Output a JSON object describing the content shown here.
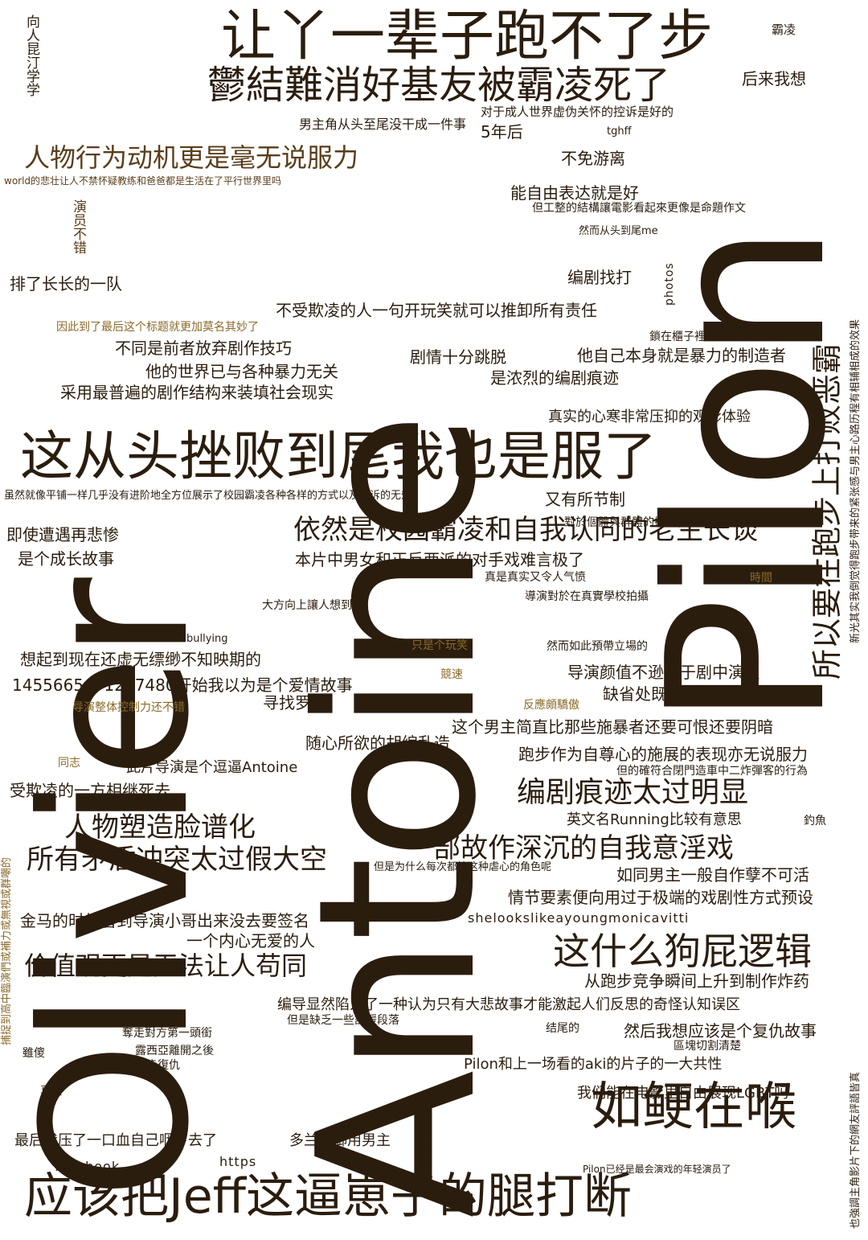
{
  "big": {
    "olivier": "Olivier",
    "antoine": "Antoine",
    "pilon": "Pilon"
  },
  "words": {
    "w01": "让丫一辈子跑不了步",
    "w02": "鬱結難消好基友被霸凌死了",
    "w03": "霸凌",
    "w04": "后来我想",
    "w05": "对于成人世界虚伪关怀的控诉是好的",
    "w06": "男主角从头至尾没干成一件事",
    "w07": "5年后",
    "w08": "tghff",
    "w09": "人物行为动机更是毫无说服力",
    "w10": "world的悲壮让人不禁怀疑教练和爸爸都是生活在了平行世界里吗",
    "w11": "不免游离",
    "w12": "能自由表达就是好",
    "w13": "但工整的結構讓電影看起來更像是命題作文",
    "w14": "然而从头到尾me",
    "w15": "排了长长的一队",
    "w16": "编剧找打",
    "w17": "不受欺凌的人一句开玩笑就可以推卸所有责任",
    "w18": "因此到了最后这个标题就更加莫名其妙了",
    "w19": "鎖在櫃子裡的意象不時出現",
    "w20": "不同是前者放弃剧作技巧",
    "w21": "剧情十分跳脱",
    "w22": "他自己本身就是暴力的制造者",
    "w23": "他的世界已与各种暴力无关",
    "w24": "是浓烈的编剧痕迹",
    "w25": "采用最普遍的剧作结构来装填社会现实",
    "w26": "真实的心寒非常压抑的观影体验",
    "w27": "这从头挫败到尾我也是服了",
    "w28": "虽然就像平铺一样几乎没有进阶地全方位展示了校园霸凌各种各样的方式以及控诉的无效",
    "w29": "又有所节制",
    "w30": "對於個體與群體的探討有些微失焦",
    "w31": "即使遭遇再悲惨",
    "w32": "依然是校园霸凌和自我认同的老生长谈",
    "w33": "是个成长故事",
    "w34": "本片中男女和正反两派的对手戏难言极了",
    "w35": "時間",
    "w36": "真是真实又令人气愤",
    "w37": "大方向上讓人想到",
    "w38": "導演對於在真實學校拍攝",
    "w39": "bullying",
    "w40": "只是个玩笑",
    "w41": "然而如此預帶立場的",
    "w42": "想起到现在还虚无缥缈不知映期的",
    "w43": "导演颜值不逊色于剧中演员",
    "w44": "競速",
    "w45": "1455665471217480开始我以为是个爱情故事",
    "w46": "缺省处既改编着人物的命运",
    "w47": "寻找罗麦",
    "w48": "导演整体控制力还不错",
    "w49": "反應頗驕傲",
    "w50": "这个男主简直比那些施暴者还要可恨还要阴暗",
    "w51": "随心所欲的胡编乱造",
    "w52": "同志",
    "w53": "此片导演是个逗逼Antoine",
    "w54": "跑步作为自尊心的施展的表现亦无说服力",
    "w55": "但的確符合閉門造車中二炸彈客的行為",
    "w56": "受欺凌的一方相继死去",
    "w57": "编剧痕迹太过明显",
    "w58": "人物塑造脸谱化",
    "w59": "英文名Running比较有意思",
    "w60": "釣魚",
    "w61": "所有矛盾冲突太过假大空",
    "w62": "一部故作深沉的自我意淫戏",
    "w63": "但是为什么每次都接这种虐心的角色呢",
    "w64": "如同男主一般自作孽不可活",
    "w65": "情节要素便向用过于极端的戏剧性方式预设",
    "w66": "金马的时候看到导演小哥出来没去要签名",
    "w67": "shelookslikeayoungmonicavitti",
    "w68": "一个内心无爱的人",
    "w69": "这什么狗屁逻辑",
    "w70": "价值观更是无法让人苟同",
    "w71": "从跑步竞争瞬间上升到制作炸药",
    "w72": "编导显然陷入了一种认为只有大悲故事才能激起人们反思的奇怪认知误区",
    "w73": "但是缺乏一些舒缓段落",
    "w74": "奪走對方第一頭銜",
    "w75": "结尾的",
    "w76": "然后我想应该是个复仇故事",
    "w77": "露西亞離開之後",
    "w78": "區塊切割清楚",
    "w79": "雖傻",
    "w80": "主角用跑步復仇",
    "w81": "Pilon和上一场看的aki的片子的一大共性",
    "w82": "真實",
    "w83": "我们能在电影里自由展现LGBT吗",
    "w84": "如鲠在喉",
    "w85": "最后我压了一口血自己咽下去了",
    "w86": "多兰的御用男主",
    "w87": "facebook",
    "w88": "https",
    "w89": "Pilon已经是最会演戏的年轻演员了",
    "w90": "应该把Jeff这逼崽子的腿打断",
    "v01": "向人昆汀学学",
    "v02": "演员不错",
    "v03": "photos",
    "v04": "所以要在跑步上打败恶霸",
    "v05": "新光其实我倒觉得跑步带来的紧张感与男主心路历程有相辅相成的效果",
    "v06": "捕捉到高中臨演們或補力或無視或群嘲的",
    "v07": "也強調主角影片下的網友評語皆真"
  }
}
